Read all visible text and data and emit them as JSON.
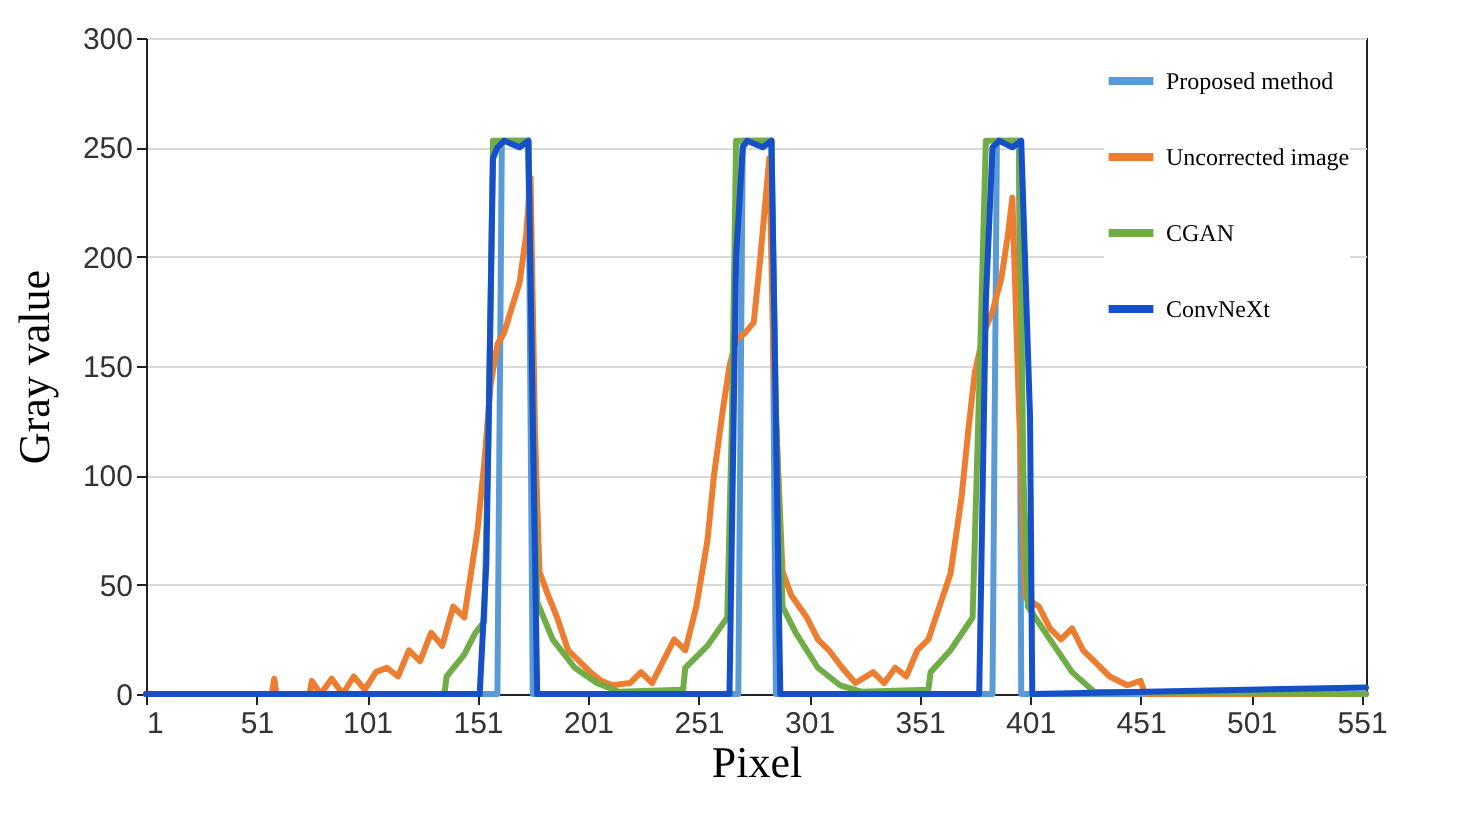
{
  "chart_data": {
    "type": "line",
    "xlabel": "Pixel",
    "ylabel": "Gray value",
    "xlim": [
      1,
      553
    ],
    "xticks": [
      1,
      51,
      101,
      151,
      201,
      251,
      301,
      351,
      401,
      451,
      501,
      551
    ],
    "ylim": [
      0,
      300
    ],
    "yticks": [
      0,
      50,
      100,
      150,
      200,
      250,
      300
    ],
    "grid": "y",
    "legend": "top right",
    "line_style": "solid",
    "series": [
      {
        "name": "Proposed method",
        "color": "#5b9bd5",
        "x": [
          1,
          160,
          162,
          174,
          176,
          269,
          271,
          284,
          286,
          384,
          386,
          396,
          397,
          553
        ],
        "values": [
          0,
          0,
          253,
          253,
          0,
          0,
          253,
          253,
          0,
          0,
          253,
          253,
          0,
          0
        ]
      },
      {
        "name": "Uncorrected image",
        "color": "#ed7d31",
        "x": [
          1,
          58,
          59,
          60,
          75,
          76,
          80,
          85,
          90,
          95,
          100,
          105,
          110,
          115,
          120,
          125,
          130,
          135,
          140,
          145,
          148,
          151,
          154,
          157,
          160,
          163,
          166,
          170,
          173,
          175,
          177,
          179,
          183,
          187,
          192,
          197,
          202,
          207,
          212,
          220,
          225,
          230,
          235,
          240,
          245,
          250,
          255,
          258,
          262,
          265,
          268,
          272,
          276,
          279,
          283,
          285,
          289,
          293,
          300,
          305,
          310,
          316,
          322,
          330,
          335,
          340,
          345,
          350,
          355,
          360,
          365,
          370,
          373,
          376,
          380,
          384,
          388,
          391,
          393,
          396,
          399,
          405,
          410,
          415,
          420,
          425,
          430,
          437,
          445,
          451,
          453,
          553
        ],
        "values": [
          0,
          0,
          7,
          0,
          0,
          6,
          0,
          7,
          0,
          8,
          2,
          10,
          12,
          8,
          20,
          15,
          28,
          22,
          40,
          35,
          55,
          75,
          105,
          142,
          160,
          165,
          175,
          188,
          210,
          236,
          120,
          56,
          45,
          35,
          20,
          15,
          10,
          6,
          4,
          5,
          10,
          5,
          15,
          25,
          20,
          40,
          70,
          100,
          130,
          150,
          162,
          165,
          170,
          200,
          245,
          150,
          56,
          45,
          35,
          25,
          20,
          12,
          5,
          10,
          5,
          12,
          8,
          20,
          25,
          40,
          55,
          90,
          120,
          147,
          165,
          175,
          190,
          210,
          227,
          130,
          44,
          40,
          30,
          25,
          30,
          20,
          15,
          8,
          4,
          6,
          0,
          0
        ]
      },
      {
        "name": "CGAN",
        "color": "#70ad47",
        "x": [
          1,
          136,
          137,
          145,
          150,
          154,
          156,
          158,
          174,
          176,
          178,
          185,
          195,
          205,
          215,
          244,
          245,
          255,
          264,
          266,
          268,
          284,
          286,
          289,
          295,
          305,
          315,
          325,
          355,
          356,
          365,
          375,
          378,
          381,
          396,
          398,
          400,
          410,
          420,
          430,
          553
        ],
        "values": [
          0,
          0,
          8,
          18,
          28,
          33,
          120,
          253,
          253,
          125,
          42,
          25,
          12,
          5,
          1,
          2,
          12,
          22,
          35,
          120,
          253,
          253,
          130,
          40,
          28,
          12,
          4,
          1,
          2,
          10,
          20,
          35,
          140,
          253,
          253,
          100,
          40,
          25,
          10,
          1,
          0
        ]
      },
      {
        "name": "ConvNeXt",
        "color": "#1550c8",
        "x": [
          1,
          152,
          155,
          158,
          160,
          163,
          170,
          174,
          176,
          178,
          265,
          268,
          271,
          273,
          280,
          284,
          286,
          288,
          378,
          381,
          384,
          387,
          393,
          397,
          401,
          402,
          553
        ],
        "values": [
          0,
          0,
          60,
          245,
          250,
          253,
          250,
          253,
          126,
          0,
          0,
          200,
          250,
          253,
          250,
          253,
          126,
          0,
          0,
          180,
          250,
          253,
          250,
          253,
          126,
          0,
          3
        ]
      }
    ]
  }
}
